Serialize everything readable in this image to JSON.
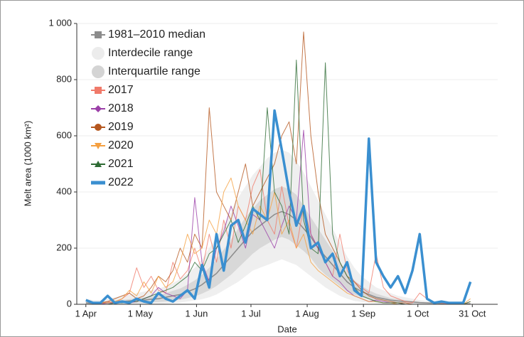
{
  "chart_data": {
    "type": "line",
    "y_label": "Melt area (1000 km²)",
    "x_label": "Date",
    "xlim": [
      -5,
      227
    ],
    "ylim": [
      0,
      1000
    ],
    "xticks": [
      {
        "value": 0,
        "label": "1 Apr"
      },
      {
        "value": 30,
        "label": "1 May"
      },
      {
        "value": 61,
        "label": "1 Jun"
      },
      {
        "value": 91,
        "label": "1 Jul"
      },
      {
        "value": 122,
        "label": "1 Aug"
      },
      {
        "value": 153,
        "label": "1 Sep"
      },
      {
        "value": 183,
        "label": "1 Oct"
      },
      {
        "value": 213,
        "label": "31 Oct"
      }
    ],
    "yticks": [
      0,
      200,
      400,
      600,
      800,
      {
        "value": 1000,
        "label": "1 000"
      }
    ],
    "grid": true,
    "x": [
      0,
      4,
      8,
      12,
      16,
      20,
      24,
      28,
      32,
      36,
      40,
      44,
      48,
      52,
      56,
      60,
      64,
      68,
      72,
      76,
      80,
      84,
      88,
      92,
      96,
      100,
      104,
      108,
      112,
      116,
      120,
      124,
      128,
      132,
      136,
      140,
      144,
      148,
      152,
      156,
      160,
      164,
      168,
      172,
      176,
      180,
      184,
      188,
      192,
      196,
      200,
      204,
      208,
      212
    ],
    "median": {
      "name": "1981–2010 median",
      "color": "#8c8c8c",
      "values": [
        5,
        3,
        4,
        5,
        8,
        10,
        12,
        15,
        15,
        18,
        20,
        25,
        30,
        35,
        45,
        55,
        70,
        90,
        110,
        140,
        170,
        200,
        230,
        260,
        280,
        300,
        320,
        330,
        320,
        300,
        270,
        240,
        200,
        170,
        140,
        110,
        80,
        60,
        45,
        35,
        25,
        20,
        15,
        12,
        10,
        8,
        6,
        5,
        4,
        3,
        3,
        2,
        2,
        2
      ]
    },
    "bands": [
      {
        "name": "Interdecile range",
        "color": "#ececec",
        "low": [
          0,
          0,
          0,
          0,
          0,
          0,
          0,
          0,
          0,
          0,
          0,
          2,
          4,
          6,
          10,
          14,
          18,
          25,
          35,
          50,
          65,
          80,
          100,
          120,
          130,
          140,
          150,
          160,
          150,
          140,
          120,
          100,
          80,
          60,
          45,
          30,
          20,
          12,
          8,
          5,
          3,
          2,
          1,
          0,
          0,
          0,
          0,
          0,
          0,
          0,
          0,
          0,
          0,
          0
        ],
        "high": [
          20,
          15,
          15,
          20,
          25,
          30,
          35,
          40,
          45,
          50,
          55,
          65,
          75,
          90,
          110,
          130,
          160,
          200,
          240,
          280,
          330,
          380,
          420,
          460,
          490,
          520,
          540,
          550,
          540,
          510,
          470,
          420,
          370,
          320,
          270,
          220,
          170,
          130,
          100,
          80,
          60,
          50,
          40,
          30,
          25,
          20,
          15,
          12,
          10,
          8,
          8,
          6,
          6,
          5
        ]
      },
      {
        "name": "Interquartile range",
        "color": "#d4d4d4",
        "low": [
          1,
          0,
          1,
          1,
          2,
          3,
          4,
          5,
          6,
          7,
          8,
          10,
          13,
          16,
          22,
          28,
          38,
          50,
          65,
          85,
          105,
          130,
          155,
          180,
          200,
          215,
          230,
          240,
          230,
          210,
          190,
          165,
          130,
          105,
          85,
          65,
          45,
          35,
          25,
          18,
          12,
          10,
          7,
          5,
          4,
          3,
          2,
          2,
          1,
          1,
          1,
          1,
          1,
          1
        ],
        "high": [
          10,
          8,
          8,
          10,
          14,
          16,
          18,
          22,
          24,
          28,
          32,
          40,
          48,
          56,
          70,
          85,
          105,
          130,
          160,
          195,
          230,
          270,
          310,
          340,
          370,
          390,
          410,
          420,
          410,
          390,
          350,
          310,
          270,
          230,
          190,
          150,
          115,
          85,
          65,
          50,
          38,
          30,
          22,
          18,
          15,
          12,
          9,
          7,
          6,
          5,
          4,
          3,
          3,
          3
        ]
      }
    ],
    "series": [
      {
        "name": "2017",
        "color": "#f07a6a",
        "marker": "square",
        "values": [
          0,
          0,
          5,
          10,
          5,
          20,
          40,
          130,
          60,
          100,
          50,
          40,
          150,
          90,
          120,
          200,
          120,
          250,
          150,
          300,
          200,
          350,
          300,
          420,
          480,
          300,
          250,
          420,
          280,
          200,
          350,
          250,
          200,
          150,
          100,
          250,
          120,
          80,
          60,
          40,
          180,
          60,
          30,
          20,
          10,
          5,
          40,
          20,
          5,
          5,
          0,
          0,
          0,
          10
        ]
      },
      {
        "name": "2018",
        "color": "#9b3fa8",
        "marker": "diamond",
        "values": [
          0,
          0,
          0,
          5,
          5,
          10,
          5,
          10,
          20,
          30,
          60,
          40,
          30,
          20,
          50,
          380,
          150,
          80,
          200,
          260,
          350,
          280,
          200,
          320,
          300,
          250,
          200,
          280,
          350,
          300,
          620,
          250,
          200,
          150,
          100,
          80,
          50,
          30,
          20,
          10,
          15,
          10,
          5,
          5,
          0,
          0,
          0,
          0,
          0,
          0,
          0,
          0,
          0,
          0
        ]
      },
      {
        "name": "2019",
        "color": "#b5571f",
        "marker": "circle",
        "values": [
          0,
          0,
          5,
          10,
          20,
          30,
          40,
          20,
          30,
          60,
          100,
          80,
          120,
          200,
          150,
          250,
          200,
          700,
          400,
          350,
          300,
          400,
          500,
          350,
          400,
          450,
          500,
          600,
          650,
          500,
          970,
          600,
          400,
          250,
          200,
          150,
          100,
          80,
          50,
          30,
          20,
          15,
          10,
          5,
          5,
          0,
          0,
          0,
          0,
          0,
          0,
          0,
          0,
          0
        ]
      },
      {
        "name": "2020",
        "color": "#f5a040",
        "marker": "triangle-down",
        "values": [
          0,
          0,
          5,
          5,
          10,
          20,
          50,
          30,
          80,
          40,
          100,
          60,
          80,
          150,
          250,
          180,
          200,
          300,
          250,
          400,
          450,
          350,
          300,
          250,
          350,
          300,
          400,
          250,
          300,
          200,
          250,
          150,
          120,
          100,
          80,
          60,
          40,
          30,
          20,
          10,
          10,
          5,
          5,
          0,
          0,
          0,
          0,
          0,
          0,
          0,
          0,
          0,
          0,
          20
        ]
      },
      {
        "name": "2021",
        "color": "#2e6b34",
        "marker": "triangle-up",
        "values": [
          0,
          0,
          0,
          0,
          5,
          5,
          10,
          10,
          20,
          30,
          40,
          50,
          60,
          80,
          100,
          150,
          120,
          180,
          200,
          250,
          300,
          220,
          280,
          350,
          300,
          700,
          400,
          350,
          250,
          870,
          300,
          200,
          180,
          860,
          250,
          150,
          100,
          60,
          30,
          20,
          10,
          5,
          5,
          5,
          0,
          0,
          0,
          0,
          0,
          0,
          0,
          0,
          0,
          10
        ]
      },
      {
        "name": "2022",
        "color": "#3a8fd0",
        "marker": "thick",
        "values": [
          15,
          5,
          5,
          30,
          5,
          10,
          5,
          20,
          10,
          5,
          40,
          20,
          10,
          30,
          50,
          20,
          140,
          60,
          250,
          120,
          280,
          300,
          220,
          340,
          320,
          300,
          690,
          550,
          400,
          280,
          350,
          200,
          220,
          150,
          180,
          100,
          150,
          50,
          30,
          590,
          150,
          100,
          60,
          100,
          40,
          120,
          250,
          20,
          5,
          10,
          5,
          5,
          5,
          80
        ]
      }
    ]
  }
}
